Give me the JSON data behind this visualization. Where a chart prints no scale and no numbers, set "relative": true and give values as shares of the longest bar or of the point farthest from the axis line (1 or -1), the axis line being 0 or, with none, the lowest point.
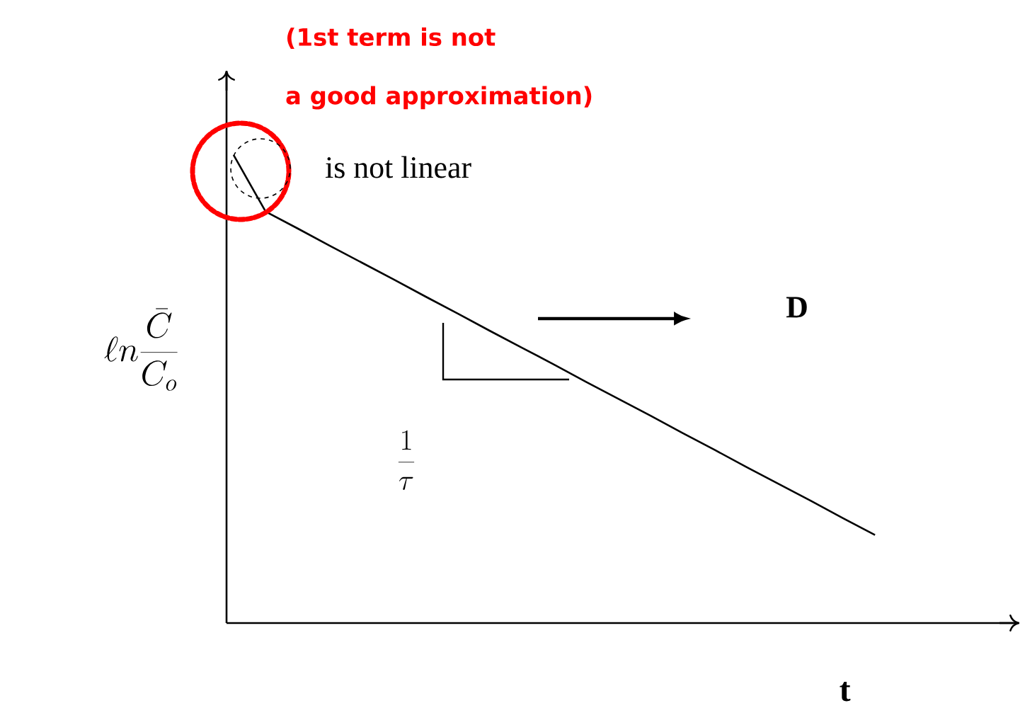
{
  "chart_data": {
    "type": "line",
    "relative": true,
    "marker": "none",
    "line_style": "solid",
    "xlabel": "t",
    "ylabel": "\\ell n\\frac{\\bar{C}}{C_o}",
    "categories": [
      null,
      null,
      null,
      null,
      null,
      null,
      null,
      null,
      null,
      null,
      null,
      null,
      null,
      null,
      null,
      null,
      null,
      null,
      null,
      null,
      null
    ],
    "series": [
      {
        "color": "#000000",
        "values": [
          1,
          0.879,
          0.843,
          0.806,
          0.77,
          0.734,
          0.697,
          0.661,
          0.624,
          0.588,
          0.552,
          0.515,
          0.479,
          0.443,
          0.406,
          0.37,
          0.333,
          0.297,
          0.261,
          0.224,
          0.188
        ]
      }
    ],
    "annotations": [
      "(1st term is not",
      "a good approximation)",
      "is not linear",
      "D",
      "\\frac{1}{\\tau}"
    ]
  }
}
